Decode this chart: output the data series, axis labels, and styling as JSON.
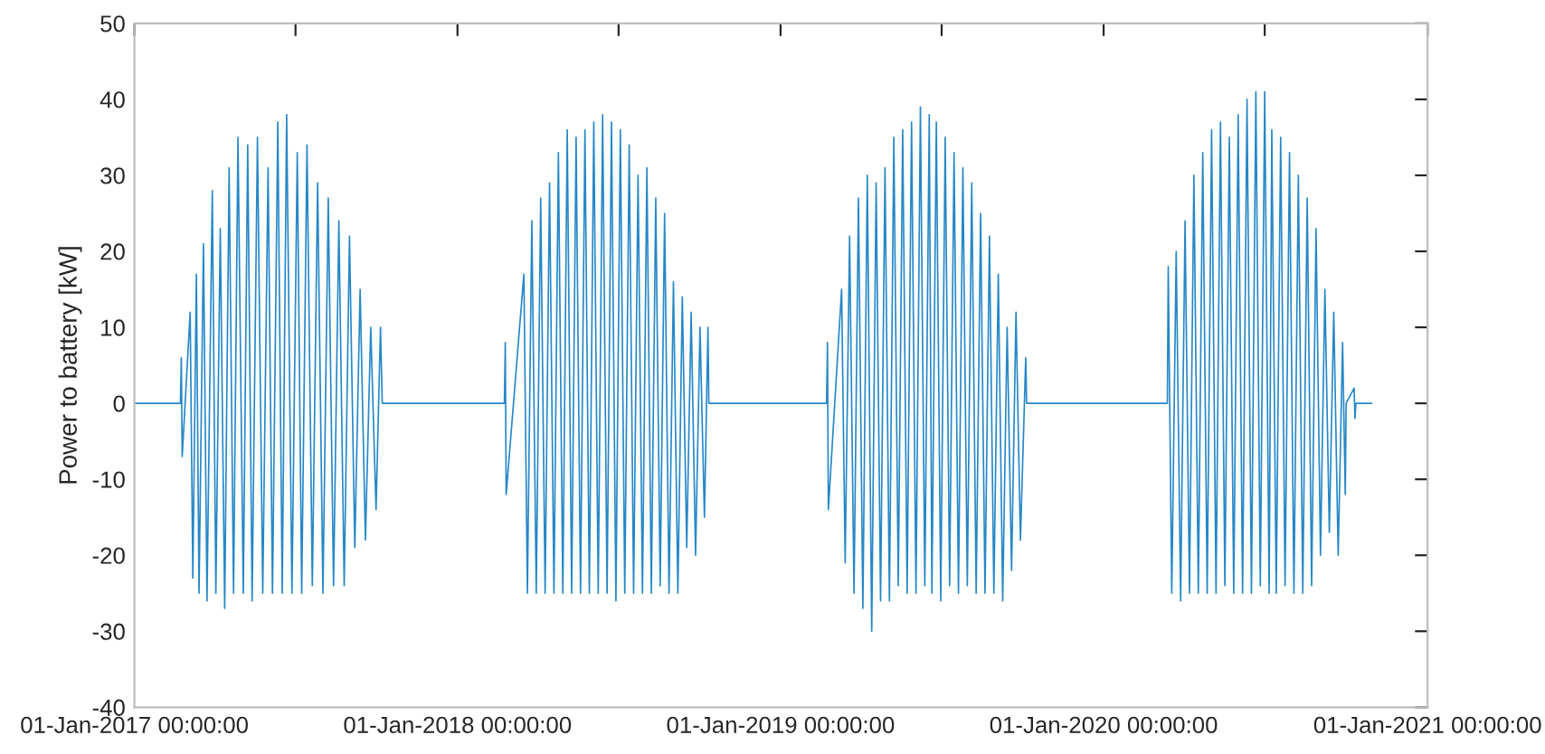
{
  "chart_data": {
    "type": "line",
    "ylabel": "Power to battery [kW]",
    "xlim": [
      "2017-01-01",
      "2021-01-01"
    ],
    "xticks": [
      {
        "value": "2017-01-01",
        "label": "01-Jan-2017 00:00:00"
      },
      {
        "value": "2017-07-02",
        "label": null
      },
      {
        "value": "2018-01-01",
        "label": "01-Jan-2018 00:00:00"
      },
      {
        "value": "2018-07-02",
        "label": null
      },
      {
        "value": "2019-01-01",
        "label": "01-Jan-2019 00:00:00"
      },
      {
        "value": "2019-07-02",
        "label": null
      },
      {
        "value": "2020-01-01",
        "label": "01-Jan-2020 00:00:00"
      },
      {
        "value": "2020-07-01",
        "label": null
      },
      {
        "value": "2021-01-01",
        "label": "01-Jan-2021 00:00:00"
      }
    ],
    "ylim": [
      -40,
      50
    ],
    "yticks": [
      -40,
      -30,
      -20,
      -10,
      0,
      10,
      20,
      30,
      40,
      50
    ],
    "grid": false,
    "line_style": "solid",
    "marker": "none",
    "series": [
      {
        "color": "#0072bd",
        "x": [
          "2017-01-01",
          "2017-02-22",
          "2017-02-23",
          "2017-02-24",
          "2017-03-05",
          "2017-03-08",
          "2017-03-12",
          "2017-03-15",
          "2017-03-20",
          "2017-03-24",
          "2017-03-30",
          "2017-04-03",
          "2017-04-08",
          "2017-04-13",
          "2017-04-18",
          "2017-04-23",
          "2017-04-28",
          "2017-05-04",
          "2017-05-09",
          "2017-05-14",
          "2017-05-20",
          "2017-05-26",
          "2017-06-01",
          "2017-06-06",
          "2017-06-12",
          "2017-06-17",
          "2017-06-22",
          "2017-06-28",
          "2017-07-04",
          "2017-07-09",
          "2017-07-15",
          "2017-07-21",
          "2017-07-27",
          "2017-08-02",
          "2017-08-08",
          "2017-08-14",
          "2017-08-20",
          "2017-08-26",
          "2017-09-01",
          "2017-09-07",
          "2017-09-13",
          "2017-09-19",
          "2017-09-25",
          "2017-10-01",
          "2017-10-06",
          "2017-10-08",
          "2018-02-23",
          "2018-02-24",
          "2018-02-25",
          "2018-03-17",
          "2018-03-21",
          "2018-03-26",
          "2018-03-31",
          "2018-04-05",
          "2018-04-10",
          "2018-04-15",
          "2018-04-20",
          "2018-04-25",
          "2018-04-30",
          "2018-05-05",
          "2018-05-10",
          "2018-05-15",
          "2018-05-20",
          "2018-05-25",
          "2018-05-30",
          "2018-06-04",
          "2018-06-09",
          "2018-06-14",
          "2018-06-19",
          "2018-06-24",
          "2018-06-29",
          "2018-07-04",
          "2018-07-09",
          "2018-07-14",
          "2018-07-19",
          "2018-07-24",
          "2018-07-29",
          "2018-08-03",
          "2018-08-08",
          "2018-08-13",
          "2018-08-18",
          "2018-08-23",
          "2018-08-28",
          "2018-09-02",
          "2018-09-07",
          "2018-09-12",
          "2018-09-17",
          "2018-09-22",
          "2018-09-27",
          "2018-10-02",
          "2018-10-07",
          "2018-10-11",
          "2018-10-12",
          "2019-02-22",
          "2019-02-23",
          "2019-02-24",
          "2019-03-11",
          "2019-03-15",
          "2019-03-20",
          "2019-03-25",
          "2019-03-30",
          "2019-04-04",
          "2019-04-09",
          "2019-04-14",
          "2019-04-19",
          "2019-04-24",
          "2019-04-29",
          "2019-05-04",
          "2019-05-09",
          "2019-05-14",
          "2019-05-19",
          "2019-05-24",
          "2019-05-29",
          "2019-06-03",
          "2019-06-08",
          "2019-06-13",
          "2019-06-18",
          "2019-06-21",
          "2019-06-26",
          "2019-07-01",
          "2019-07-06",
          "2019-07-11",
          "2019-07-16",
          "2019-07-21",
          "2019-07-26",
          "2019-07-31",
          "2019-08-05",
          "2019-08-10",
          "2019-08-15",
          "2019-08-20",
          "2019-08-25",
          "2019-08-30",
          "2019-09-04",
          "2019-09-09",
          "2019-09-14",
          "2019-09-19",
          "2019-09-24",
          "2019-09-29",
          "2019-10-05",
          "2019-10-06",
          "2020-03-13",
          "2020-03-14",
          "2020-03-18",
          "2020-03-23",
          "2020-03-28",
          "2020-04-02",
          "2020-04-07",
          "2020-04-12",
          "2020-04-17",
          "2020-04-22",
          "2020-04-27",
          "2020-05-02",
          "2020-05-07",
          "2020-05-12",
          "2020-05-17",
          "2020-05-22",
          "2020-05-27",
          "2020-06-01",
          "2020-06-06",
          "2020-06-11",
          "2020-06-16",
          "2020-06-21",
          "2020-06-26",
          "2020-07-01",
          "2020-07-06",
          "2020-07-09",
          "2020-07-14",
          "2020-07-19",
          "2020-07-24",
          "2020-07-29",
          "2020-08-03",
          "2020-08-08",
          "2020-08-13",
          "2020-08-18",
          "2020-08-23",
          "2020-08-28",
          "2020-09-02",
          "2020-09-07",
          "2020-09-12",
          "2020-09-17",
          "2020-09-22",
          "2020-09-27",
          "2020-09-30",
          "2020-10-01",
          "2020-10-10",
          "2020-10-11",
          "2020-10-12",
          "2020-10-30"
        ],
        "values": [
          0,
          0,
          6,
          -7,
          12,
          -23,
          17,
          -25,
          21,
          -26,
          28,
          -25,
          23,
          -27,
          31,
          -25,
          35,
          -25,
          34,
          -26,
          35,
          -25,
          31,
          -25,
          37,
          -25,
          38,
          -25,
          33,
          -25,
          34,
          -24,
          29,
          -25,
          27,
          -24,
          24,
          -24,
          22,
          -19,
          15,
          -18,
          10,
          -14,
          10,
          0,
          0,
          8,
          -12,
          17,
          -25,
          24,
          -25,
          27,
          -25,
          29,
          -25,
          33,
          -25,
          36,
          -25,
          35,
          -25,
          36,
          -25,
          37,
          -25,
          38,
          -25,
          37,
          -26,
          36,
          -25,
          34,
          -25,
          30,
          -25,
          31,
          -25,
          27,
          -24,
          25,
          -25,
          16,
          -25,
          14,
          -19,
          12,
          -20,
          10,
          -15,
          10,
          0,
          0,
          8,
          -14,
          15,
          -21,
          22,
          -25,
          27,
          -27,
          30,
          -30,
          29,
          -26,
          31,
          -26,
          35,
          -24,
          36,
          -25,
          37,
          -25,
          39,
          -24,
          38,
          -25,
          37,
          -26,
          35,
          -24,
          33,
          -25,
          31,
          -24,
          29,
          -25,
          25,
          -25,
          22,
          -25,
          17,
          -26,
          10,
          -22,
          12,
          -18,
          6,
          0,
          0,
          18,
          -25,
          20,
          -26,
          24,
          -25,
          30,
          -25,
          33,
          -25,
          36,
          -25,
          37,
          -24,
          35,
          -25,
          38,
          -25,
          40,
          -25,
          41,
          -24,
          41,
          -25,
          36,
          -25,
          35,
          -24,
          33,
          -25,
          30,
          -25,
          27,
          -24,
          23,
          -20,
          15,
          -17,
          12,
          -20,
          8,
          -12,
          0,
          2,
          -2,
          0,
          0
        ]
      }
    ]
  }
}
